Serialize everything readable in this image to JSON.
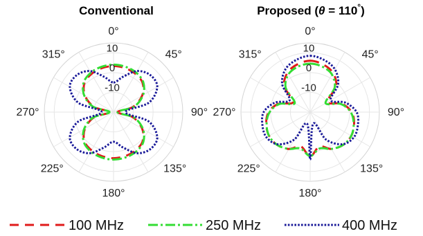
{
  "legend": [
    {
      "label": "100 MHz",
      "color": "#e01b1b",
      "dash": "13 9"
    },
    {
      "label": "250 MHz",
      "color": "#33dd33",
      "dash": "14 4 3 4"
    },
    {
      "label": "400 MHz",
      "color": "#1a1a99",
      "dash": "2.6 2.2"
    }
  ],
  "chart_data": [
    {
      "type": "polar-line",
      "title": "Conventional",
      "angle_labels": [
        "0°",
        "45°",
        "90°",
        "135°",
        "180°",
        "225°",
        "270°",
        "315°"
      ],
      "radial_ticks": [
        {
          "value": 10,
          "label": "10"
        },
        {
          "value": 0,
          "label": "0"
        },
        {
          "value": -10,
          "label": "-10"
        }
      ],
      "rlim": [
        -20,
        15
      ],
      "angle_direction": "clockwise, 0° at top",
      "grid": true,
      "series": [
        {
          "name": "100 MHz",
          "color": "#e01b1b",
          "dash": "13 9",
          "angles": [
            0,
            15,
            30,
            45,
            60,
            75,
            90,
            105,
            120,
            135,
            150,
            165,
            180,
            195,
            210,
            225,
            240,
            255,
            270,
            285,
            300,
            315,
            330,
            345
          ],
          "values": [
            3.3,
            3.0,
            2.3,
            0.8,
            -3.3,
            -9.8,
            -18,
            -9.8,
            -3.3,
            0.8,
            2.3,
            3.0,
            3.3,
            3.0,
            2.3,
            0.8,
            -3.3,
            -9.8,
            -18,
            -9.8,
            -3.3,
            0.8,
            2.3,
            3.0
          ]
        },
        {
          "name": "250 MHz",
          "color": "#33dd33",
          "dash": "14 4 3 4",
          "angles": [
            0,
            15,
            30,
            45,
            60,
            75,
            90,
            105,
            120,
            135,
            150,
            165,
            180,
            195,
            210,
            225,
            240,
            255,
            270,
            285,
            300,
            315,
            330,
            345
          ],
          "values": [
            4.0,
            3.7,
            3.0,
            1.3,
            -2.8,
            -9.2,
            -18,
            -9.2,
            -2.8,
            1.3,
            3.0,
            3.7,
            4.0,
            3.7,
            3.0,
            1.3,
            -2.8,
            -9.2,
            -18,
            -9.2,
            -2.8,
            1.3,
            3.0,
            3.7
          ]
        },
        {
          "name": "400 MHz",
          "color": "#1a1a99",
          "dash": "2.6 2.2",
          "angles": [
            0,
            15,
            30,
            45,
            60,
            75,
            90,
            105,
            120,
            135,
            150,
            165,
            180,
            195,
            210,
            225,
            240,
            255,
            270,
            285,
            300,
            315,
            330,
            345
          ],
          "values": [
            -5.0,
            -1.5,
            4.0,
            6.4,
            5.5,
            -1.5,
            -14,
            -1.5,
            5.5,
            6.4,
            4.0,
            -1.5,
            -5.0,
            -1.5,
            4.0,
            6.4,
            5.5,
            -1.5,
            -14,
            -1.5,
            5.5,
            6.4,
            4.0,
            -1.5
          ]
        }
      ]
    },
    {
      "type": "polar-line",
      "title": "Proposed (θ = 110°)",
      "title_parts": {
        "prefix": "Proposed (",
        "theta": "θ",
        "middle": " = 110",
        "sup": "°",
        "suffix": ")"
      },
      "angle_labels": [
        "0°",
        "45°",
        "90°",
        "135°",
        "180°",
        "225°",
        "270°",
        "315°"
      ],
      "radial_ticks": [
        {
          "value": 10,
          "label": "10"
        },
        {
          "value": 0,
          "label": "0"
        },
        {
          "value": -10,
          "label": "-10"
        }
      ],
      "rlim": [
        -20,
        15
      ],
      "angle_direction": "clockwise, 0° at top",
      "grid": true,
      "series": [
        {
          "name": "100 MHz",
          "color": "#e01b1b",
          "dash": "13 9",
          "angles": [
            0,
            15,
            30,
            45,
            60,
            75,
            90,
            105,
            120,
            135,
            150,
            165,
            180,
            195,
            210,
            225,
            240,
            255,
            270,
            285,
            300,
            315,
            330,
            345
          ],
          "values": [
            6.0,
            5.0,
            3.0,
            -1.5,
            -10,
            -3.5,
            1.0,
            3.0,
            4.0,
            3.5,
            1.5,
            -2.0,
            2.5,
            -2.0,
            1.5,
            3.5,
            4.0,
            3.0,
            1.0,
            -3.5,
            -10,
            -1.5,
            3.0,
            5.0
          ]
        },
        {
          "name": "250 MHz",
          "color": "#33dd33",
          "dash": "14 4 3 4",
          "angles": [
            0,
            15,
            30,
            45,
            60,
            75,
            90,
            105,
            120,
            135,
            150,
            165,
            180,
            195,
            210,
            225,
            240,
            255,
            270,
            285,
            300,
            315,
            330,
            345
          ],
          "values": [
            4.5,
            3.8,
            2.0,
            -2.5,
            -11,
            -4.0,
            0.5,
            2.8,
            4.0,
            3.5,
            1.5,
            -1.0,
            2.2,
            -1.0,
            1.5,
            3.5,
            4.0,
            2.8,
            0.5,
            -4.0,
            -11,
            -2.5,
            2.0,
            3.8
          ]
        },
        {
          "name": "400 MHz",
          "color": "#1a1a99",
          "dash": "2.6 2.2",
          "angles": [
            0,
            15,
            30,
            45,
            60,
            75,
            90,
            105,
            120,
            135,
            150,
            165,
            180,
            195,
            210,
            225,
            240,
            255,
            270,
            285,
            300,
            315,
            330,
            345
          ],
          "values": [
            8.5,
            7.3,
            5.0,
            0.0,
            -8.0,
            -1.5,
            3.5,
            5.0,
            5.5,
            3.0,
            -4.0,
            -14,
            4.0,
            -14,
            -4.0,
            3.0,
            5.5,
            5.0,
            3.5,
            -1.5,
            -8.0,
            0.0,
            5.0,
            7.3
          ]
        }
      ]
    }
  ]
}
